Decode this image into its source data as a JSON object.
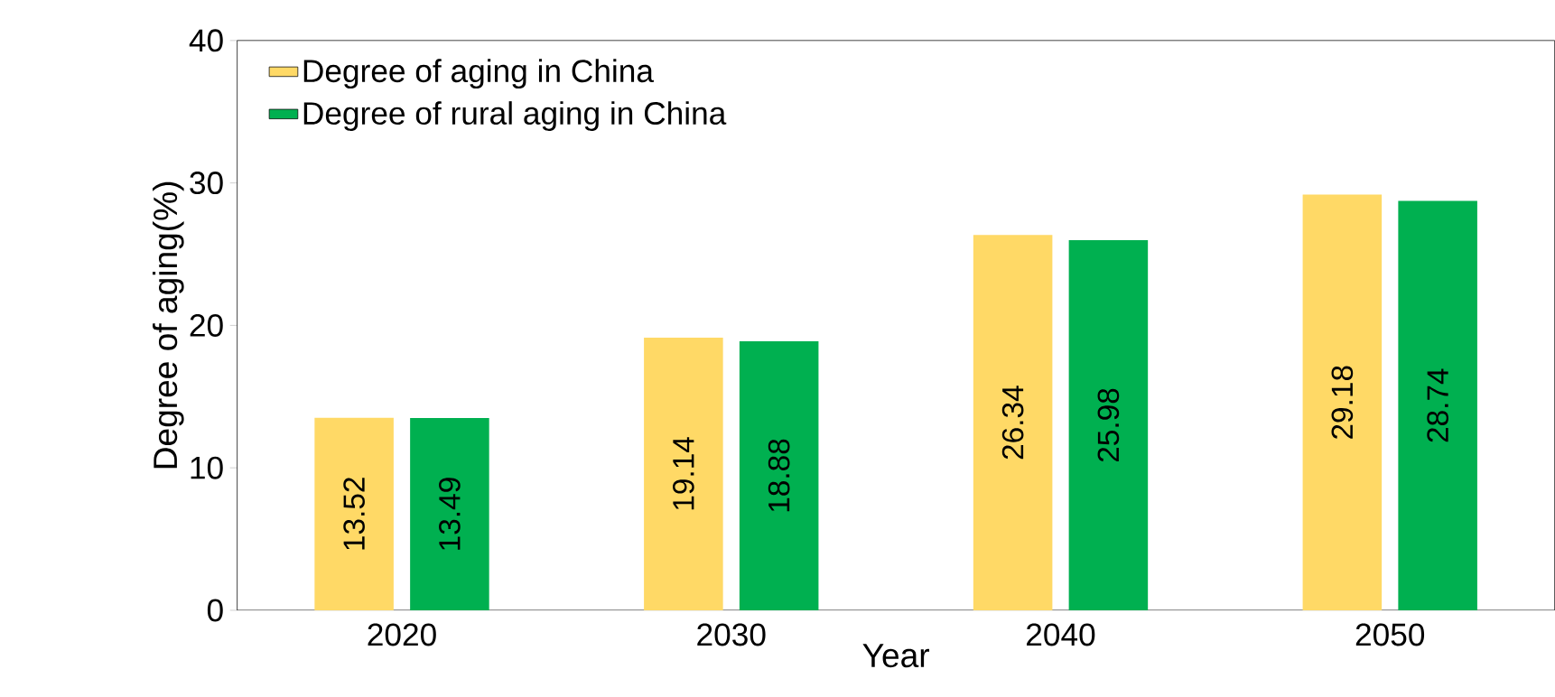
{
  "chart_data": {
    "type": "bar",
    "xlabel": "Year",
    "ylabel": "Degree of aging(%)",
    "categories": [
      "2020",
      "2030",
      "2040",
      "2050"
    ],
    "series": [
      {
        "name": "Degree of aging in China",
        "color": "#ffd966",
        "values": [
          13.52,
          19.14,
          26.34,
          29.18
        ]
      },
      {
        "name": "Degree of rural aging in China",
        "color": "#00b050",
        "values": [
          13.49,
          18.88,
          25.98,
          28.74
        ]
      }
    ],
    "ylim": [
      0,
      40
    ],
    "yticks": [
      0,
      10,
      20,
      30,
      40
    ],
    "grid": false,
    "legend": "top left",
    "data_labels": true
  }
}
